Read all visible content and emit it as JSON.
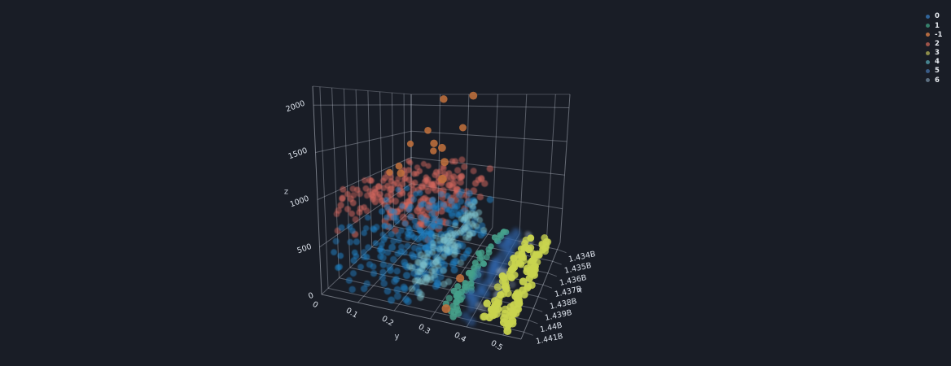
{
  "page": {
    "background": "#191d26",
    "grid_color": "#c3c9d4",
    "tick_text_color": "#dde3ec",
    "axis_title_color": "#c9d0da",
    "legend_text_color": "#e8ecf1"
  },
  "chart_data": {
    "type": "scatter3d",
    "title": "",
    "axes": {
      "x": {
        "title": "x",
        "tick_labels": [
          "1.434B",
          "1.435B",
          "1.436B",
          "1.437B",
          "1.438B",
          "1.439B",
          "1.44B",
          "1.441B"
        ],
        "tick_values": [
          1434000000,
          1435000000,
          1436000000,
          1437000000,
          1438000000,
          1439000000,
          1440000000,
          1441000000
        ],
        "range": [
          1433400000,
          1441600000
        ]
      },
      "y": {
        "title": "y",
        "tick_labels": [
          "0",
          "0.1",
          "0.2",
          "0.3",
          "0.4",
          "0.5"
        ],
        "tick_values": [
          0,
          0.1,
          0.2,
          0.3,
          0.4,
          0.5
        ],
        "range": [
          0,
          0.55
        ]
      },
      "z": {
        "title": "z",
        "tick_labels": [
          "0",
          "500",
          "1000",
          "1500",
          "2000"
        ],
        "tick_values": [
          0,
          500,
          1000,
          1500,
          2000
        ],
        "range": [
          0,
          2200
        ]
      }
    },
    "legend": {
      "position": "top-right",
      "items": [
        {
          "label": "0",
          "swatch_color": "#30649a"
        },
        {
          "label": "1",
          "swatch_color": "#36806b"
        },
        {
          "label": "-1",
          "swatch_color": "#b26a40"
        },
        {
          "label": "2",
          "swatch_color": "#9d5349"
        },
        {
          "label": "3",
          "swatch_color": "#8d8d4a"
        },
        {
          "label": "4",
          "swatch_color": "#47838f"
        },
        {
          "label": "5",
          "swatch_87": "",
          "swatch_color": "#3a5c87"
        },
        {
          "label": "6",
          "swatch_color": "#5c6e80"
        }
      ]
    },
    "series": [
      {
        "name": "2",
        "color": "#d4675e",
        "opacity": 0.5,
        "size": 8.6,
        "blur": 0.4,
        "count": 215,
        "seed": 202,
        "x_dist": [
          "uniform",
          1433700000,
          1441300000
        ],
        "y_dist": [
          "uniform",
          0.0,
          0.3
        ],
        "z_dist": [
          "gauss",
          870,
          125,
          615,
          1185
        ],
        "description": "salmon cluster, z 600-1150"
      },
      {
        "name": "0",
        "color": "#1e7ec0",
        "opacity": 0.5,
        "size": 8.6,
        "blur": 0.4,
        "count": 255,
        "seed": 101,
        "x_dist": [
          "uniform",
          1433700000,
          1441300000
        ],
        "y_dist": [
          "uniform",
          0.005,
          0.305
        ],
        "z_dist": [
          "pow",
          60,
          600,
          1.7
        ],
        "description": "large blue cluster, low z"
      },
      {
        "name": "4",
        "color": "#7fc4cf",
        "opacity": 0.42,
        "size": 8.0,
        "blur": 0.4,
        "count": 115,
        "seed": 505,
        "x_dist": [
          "uniform",
          1433650000,
          1441400000
        ],
        "y_dist": [
          "gauss",
          0.253,
          0.019,
          0.205,
          0.305
        ],
        "z_dist": [
          "pow",
          85,
          380,
          1.25
        ],
        "description": "pale cyan diagonal band at y~0.25"
      },
      {
        "name": "1",
        "color": "#46a18b",
        "opacity": 0.8,
        "size": 7.4,
        "blur": 0.3,
        "count": 58,
        "seed": 303,
        "x_dist": [
          "uniform",
          1433650000,
          1441400000
        ],
        "y_dist": [
          "gauss",
          0.352,
          0.008,
          0.33,
          0.375
        ],
        "z_dist": [
          "pow",
          25,
          170,
          1.8
        ],
        "description": "teal dotted line at y~0.35"
      },
      {
        "name": "5",
        "color": "#2f62a5",
        "opacity": 0.5,
        "size": 9.4,
        "blur": 2.2,
        "count": 48,
        "seed": 606,
        "x_dist": [
          "uniform",
          1433650000,
          1441400000
        ],
        "y_dist": [
          "gauss",
          0.402,
          0.0085,
          0.38,
          0.425
        ],
        "z_dist": [
          "pow",
          25,
          230,
          1.6
        ],
        "description": "blurry navy line at y~0.4"
      },
      {
        "name": "6",
        "color": "#8ea0b5",
        "opacity": 0.32,
        "size": 8.0,
        "blur": 1.4,
        "count": 26,
        "seed": 707,
        "x_dist": [
          "uniform",
          1433650000,
          1441400000
        ],
        "y_dist": [
          "gauss",
          0.443,
          0.011,
          0.42,
          0.468
        ],
        "z_dist": [
          "pow",
          25,
          190,
          1.5
        ],
        "description": "faint gray dots near y~0.44"
      },
      {
        "name": "3",
        "color": "#c9d44f",
        "opacity": 0.85,
        "size": 8.0,
        "blur": 0.3,
        "count": 124,
        "seed": 404,
        "x_dist": [
          "uniform",
          1433650000,
          1441400000
        ],
        "y_dist": [
          "mix",
          0.452,
          0.0065,
          0.507,
          0.0065
        ],
        "z_dist": [
          "pow",
          16,
          165,
          1.8
        ],
        "description": "two yellow-green lines at y~0.45 and y~0.5"
      },
      {
        "name": "-1",
        "color": "#c0713d",
        "opacity": 0.85,
        "size": 9.6,
        "blur": 0.2,
        "points": [
          [
            1436400000,
            0.22,
            2080
          ],
          [
            1435900000,
            0.3,
            2130
          ],
          [
            1435300000,
            0.13,
            1620
          ],
          [
            1436800000,
            0.2,
            1500
          ],
          [
            1437600000,
            0.25,
            1480
          ],
          [
            1435000000,
            0.06,
            1380
          ],
          [
            1434500000,
            0.12,
            1260
          ],
          [
            1437200000,
            0.1,
            1190
          ],
          [
            1438400000,
            0.28,
            1350
          ],
          [
            1436100000,
            0.03,
            1000
          ],
          [
            1439800000,
            0.31,
            1230
          ],
          [
            1434200000,
            0.21,
            1650
          ],
          [
            1438900000,
            0.16,
            1210
          ],
          [
            1438300000,
            0.315,
            55
          ],
          [
            1440900000,
            0.33,
            45
          ]
        ],
        "description": "orange noise/outlier points, mostly high z"
      }
    ]
  }
}
